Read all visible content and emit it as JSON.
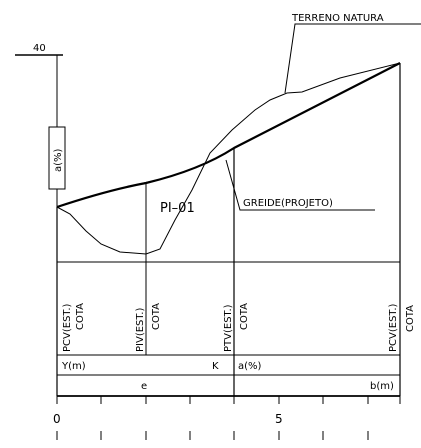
{
  "labels": {
    "elevation_40": "40",
    "terreno": "TERRENO NATURA",
    "pi": "PI–01",
    "greide": "GREIDE(PROJETO)",
    "grade_box": "a(%)",
    "pcv_left": "PCV(EST.)",
    "cota1": "COTA",
    "piv": "PIV(EST.)",
    "cota2": "COTA",
    "ptv": "PTV(EST.)",
    "cota3": "COTA",
    "pcv_right": "PCV(EST.)",
    "cota4": "COTA",
    "ym": "Y(m)",
    "k": "K",
    "a_pct": "a(%)",
    "e": "e",
    "bm": "b(m)"
  },
  "ruler": {
    "tick_labels": [
      "0",
      "5"
    ]
  }
}
